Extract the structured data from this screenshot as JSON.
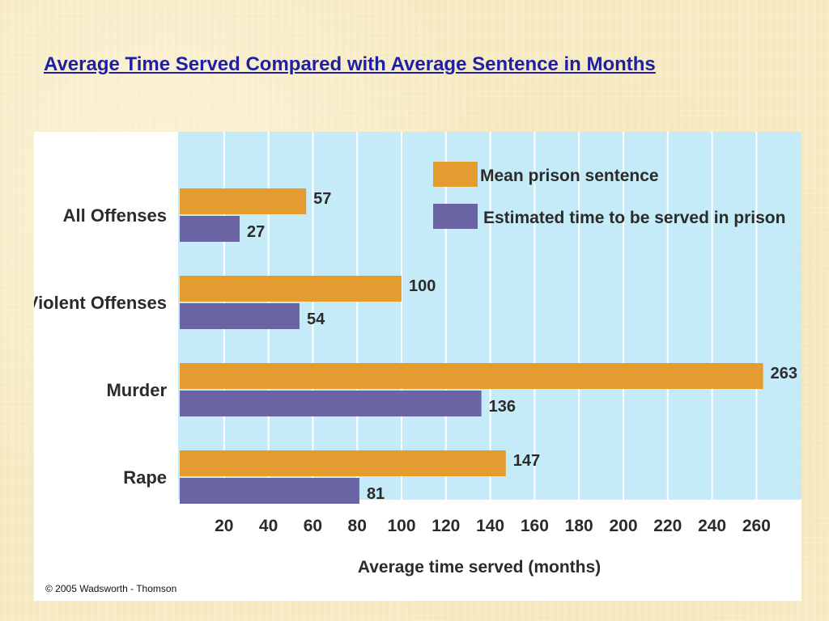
{
  "slide": {
    "title": "Average Time Served Compared with Average Sentence in Months",
    "copyright": "© 2005 Wadsworth - Thomson"
  },
  "chart_data": {
    "type": "bar",
    "orientation": "horizontal",
    "categories": [
      "All Offenses",
      "Violent Offenses",
      "Murder",
      "Rape"
    ],
    "series": [
      {
        "name": "Mean prison sentence",
        "values": [
          57,
          100,
          263,
          147
        ],
        "color": "#e49b2f"
      },
      {
        "name": "Estimated time to be served in prison",
        "values": [
          27,
          54,
          136,
          81
        ],
        "color": "#6a64a4"
      }
    ],
    "xlabel": "Average time served (months)",
    "ylabel": "",
    "xticks": [
      20,
      40,
      60,
      80,
      100,
      120,
      140,
      160,
      180,
      200,
      220,
      240,
      260
    ],
    "xlim": [
      0,
      281
    ],
    "grid": true,
    "legend_position": "top-right",
    "data_labels": true,
    "plot_background": "#c4ebf7"
  }
}
